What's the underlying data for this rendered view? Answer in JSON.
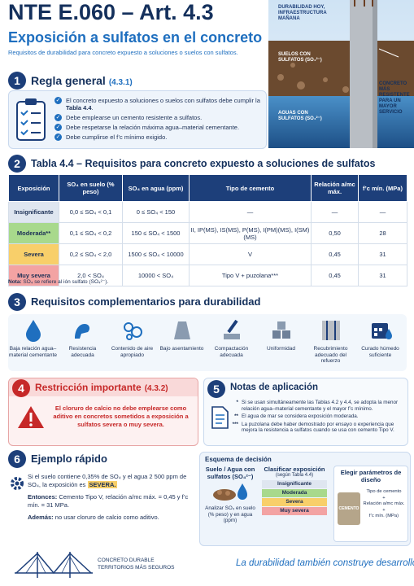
{
  "header": {
    "title": "NTE E.060 – Art. 4.3",
    "subtitle": "Exposición a sulfatos en el concreto",
    "description": "Requisitos de durabilidad para concreto expuesto a soluciones o suelos con sulfatos."
  },
  "illustration": {
    "tagline": "DURABILIDAD HOY, INFRAESTRUCTURA MAÑANA",
    "soil": "SUELOS CON SULFATOS (SO₄²⁻)",
    "water": "AGUAS CON SULFATOS (SO₄²⁻)",
    "concrete": "CONCRETO MÁS RESISTENTE PARA UN MAYOR SERVICIO"
  },
  "section1": {
    "number": "1",
    "title": "Regla general",
    "ref": "(4.3.1)",
    "items": [
      [
        {
          "text": "El concreto expuesto a soluciones o suelos con sulfatos debe cumplir la "
        },
        {
          "text": "Tabla 4.4",
          "bold": true
        },
        {
          "text": "."
        }
      ],
      [
        {
          "text": "Debe emplearse un cemento resistente a sulfatos."
        }
      ],
      [
        {
          "text": "Debe respetarse la relación máxima agua–material cementante."
        }
      ],
      [
        {
          "text": "Debe cumplirse el f’c mínimo exigido."
        }
      ]
    ]
  },
  "section2": {
    "number": "2",
    "title": "Tabla 4.4 – Requisitos para concreto expuesto a soluciones de sulfatos",
    "table": {
      "headers": [
        "Exposición",
        "SO₄ en suelo (% peso)",
        "SO₄ en agua (ppm)",
        "Tipo de cemento",
        "Relación a/mc máx.",
        "f’c mín. (MPa)"
      ],
      "rows": [
        [
          "Insignificante",
          "0,0 ≤ SO₄ < 0,1",
          "0 ≤ SO₄ < 150",
          "—",
          "—",
          "—"
        ],
        [
          "Moderada**",
          "0,1 ≤ SO₄ < 0,2",
          "150 ≤ SO₄ < 1500",
          "II, IP(MS), IS(MS), P(MS), I(PM)(MS), I(SM)(MS)",
          "0,50",
          "28"
        ],
        [
          "Severa",
          "0,2 ≤ SO₄ < 2,0",
          "1500 ≤ SO₄ < 10000",
          "V",
          "0,45",
          "31"
        ],
        [
          "Muy severa",
          "2,0 < SO₄",
          "10000 < SO₄",
          "Tipo V + puzolana***",
          "0,45",
          "31"
        ]
      ]
    },
    "note_label": "Nota:",
    "note": "SO₄ se refiere al ión sulfato (SO₄²⁻)."
  },
  "section3": {
    "number": "3",
    "title": "Requisitos complementarios para durabilidad",
    "items": [
      "Baja relación agua–material cementante",
      "Resistencia adecuada",
      "Contenido de aire apropiado",
      "Bajo asentamiento",
      "Compactación adecuada",
      "Uniformidad",
      "Recubrimiento adecuado del refuerzo",
      "Curado húmedo suficiente"
    ]
  },
  "section4": {
    "number": "4",
    "title": "Restricción importante",
    "ref": "(4.3.2)",
    "text": "El cloruro de calcio no debe emplearse como aditivo en concretos sometidos a exposición a sulfatos severa o muy severa."
  },
  "section5": {
    "number": "5",
    "title": "Notas de aplicación",
    "notes": [
      {
        "marker": "*",
        "text": "Si se usan simultáneamente las Tablas 4.2 y 4.4, se adopta la menor relación agua–material cementante y el mayor f’c mínimo."
      },
      {
        "marker": "**",
        "text": "El agua de mar se considera exposición moderada."
      },
      {
        "marker": "***",
        "text": "La puzolana debe haber demostrado por ensayo o experiencia que mejora la resistencia a sulfatos cuando se usa con cemento Tipo V."
      }
    ]
  },
  "section6": {
    "number": "6",
    "title": "Ejemplo rápido",
    "paragraphs": [
      [
        {
          "text": "Si el suelo contiene 0,35% de SO₄ y el agua 2 500 ppm de SO₄, la exposición es "
        },
        {
          "text": "SEVERA.",
          "bold": true
        }
      ],
      [
        {
          "text": "Entonces:",
          "bold": true
        },
        {
          "text": " Cemento Tipo V, relación a/mc máx. = 0,45 y f’c mín. = 31 MPa."
        }
      ],
      [
        {
          "text": "Además:",
          "bold": true
        },
        {
          "text": " no usar cloruro de calcio como aditivo."
        }
      ]
    ]
  },
  "scheme": {
    "title": "Esquema de decisión",
    "input_title": "Suelo / Agua con sulfatos (SO₄²⁻)",
    "input_caption": "Analizar SO₄ en suelo (% peso) y en agua (ppm)",
    "classify_title": "Clasificar exposición",
    "classify_subtitle": "(según Tabla 4.4)",
    "levels": [
      "Insignificante",
      "Moderada",
      "Severa",
      "Muy severa"
    ],
    "design_title": "Elegir parámetros de diseño",
    "bag_label": "CEMENTO",
    "params": [
      "Tipo de cemento",
      "+",
      "Relación a/mc máx.",
      "+",
      "f’c mín. (MPa)"
    ]
  },
  "footer": {
    "brand": "CONCRETO DURABLE TERRITORIOS MÁS SEGUROS",
    "slogan": "La durabilidad también construye desarrollo"
  }
}
